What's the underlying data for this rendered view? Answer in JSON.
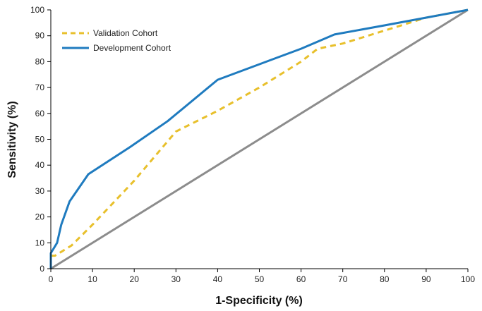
{
  "chart_data": {
    "type": "line",
    "title": "",
    "xlabel": "1-Specificity (%)",
    "ylabel": "Sensitivity (%)",
    "xlim": [
      0,
      100
    ],
    "ylim": [
      0,
      100
    ],
    "xticks": [
      0,
      10,
      20,
      30,
      40,
      50,
      60,
      70,
      80,
      90,
      100
    ],
    "yticks": [
      0,
      10,
      20,
      30,
      40,
      50,
      60,
      70,
      80,
      90,
      100
    ],
    "grid": false,
    "legend_position": "top-left",
    "series": [
      {
        "name": "Validation Cohort",
        "style": "dashed",
        "color": "#e8c02c",
        "x": [
          0,
          1,
          3,
          5,
          10,
          20,
          30,
          40,
          50,
          60,
          64,
          70,
          80,
          90,
          100
        ],
        "y": [
          5,
          5,
          7,
          9,
          17,
          34,
          53,
          61,
          70,
          80,
          85,
          87,
          92,
          97,
          100
        ]
      },
      {
        "name": "Development Cohort",
        "style": "solid",
        "color": "#1f7bbf",
        "x": [
          0,
          0,
          1.5,
          2.5,
          4.5,
          9,
          19,
          28,
          40,
          50,
          60,
          68,
          80,
          90,
          100
        ],
        "y": [
          0,
          6,
          10,
          17,
          26,
          36.5,
          47,
          57,
          73,
          79,
          85,
          90.5,
          94,
          97,
          100
        ]
      },
      {
        "name": "",
        "style": "solid",
        "color": "#8c8c8c",
        "x": [
          0,
          100
        ],
        "y": [
          0,
          100
        ]
      }
    ]
  }
}
